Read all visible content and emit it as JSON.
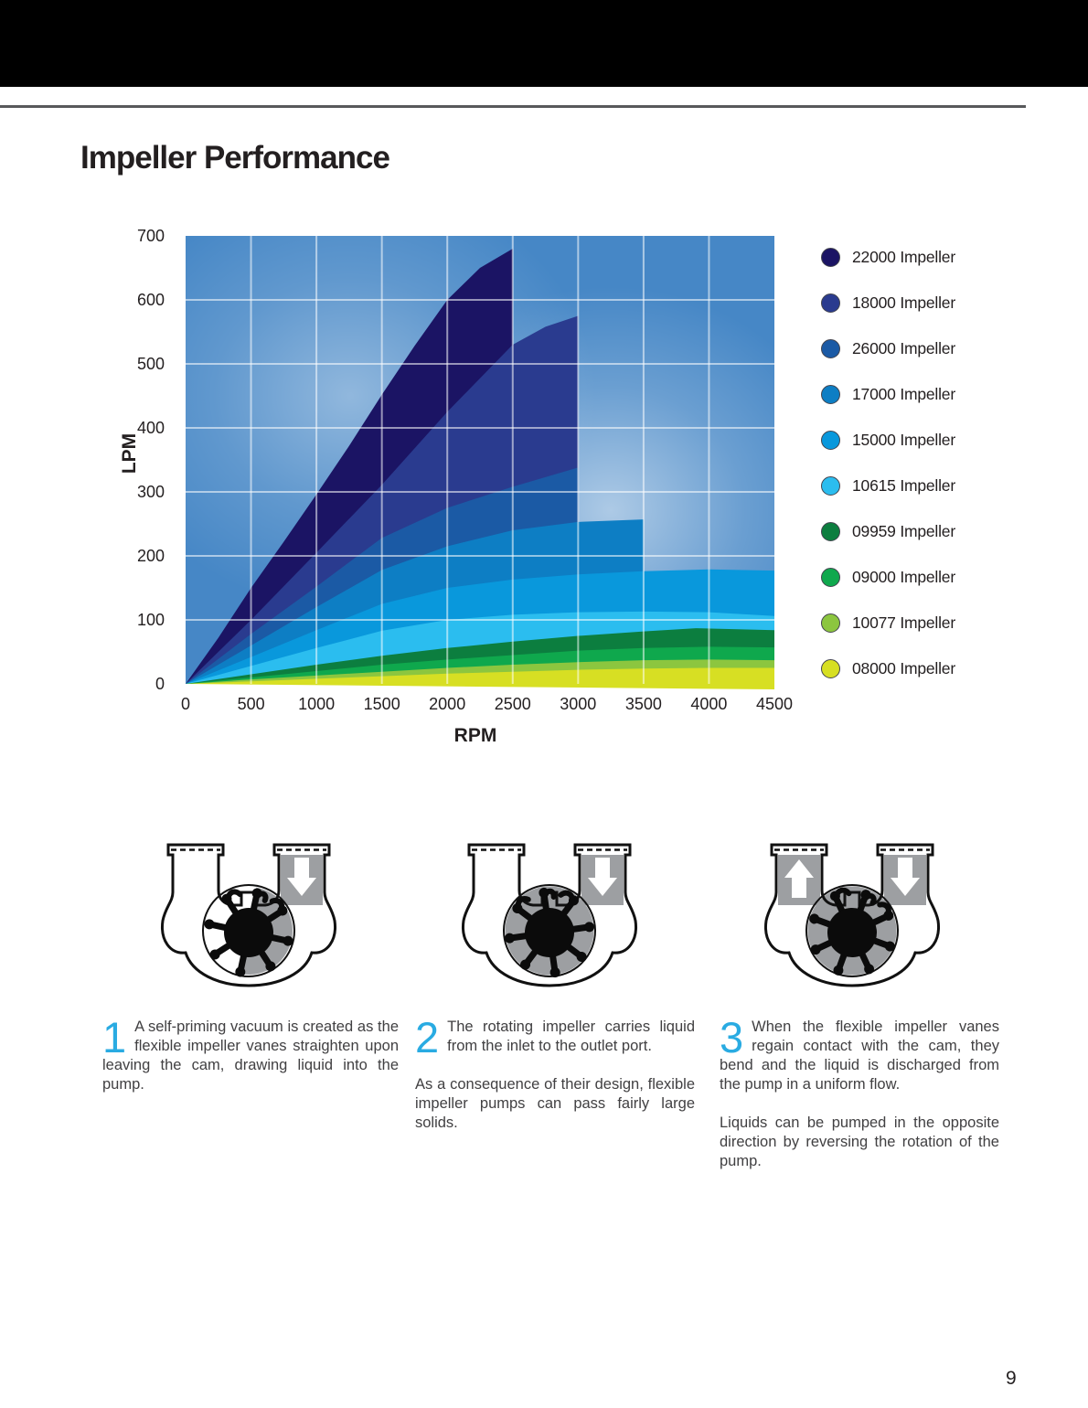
{
  "page": {
    "title": "Impeller Performance",
    "page_number": "9"
  },
  "colors": {
    "accent_cyan": "#29ABE2",
    "top_bar": "#000000",
    "rule_gray": "#58595B",
    "title_text": "#231F20",
    "body_text": "#414042",
    "diagram_gray": "#9D9FA2",
    "chart_bg_blue": "#4687C6",
    "grid_white": "#FFFFFF"
  },
  "chart_data": {
    "type": "area",
    "title": "",
    "xlabel": "RPM",
    "ylabel": "LPM",
    "xlim": [
      0,
      4500
    ],
    "ylim": [
      0,
      700
    ],
    "x_ticks": [
      0,
      500,
      1000,
      1500,
      2000,
      2500,
      3000,
      3500,
      4000,
      4500
    ],
    "y_ticks": [
      0,
      100,
      200,
      300,
      400,
      500,
      600,
      700
    ],
    "grid": true,
    "legend_position": "right",
    "series": [
      {
        "id": "22000",
        "legend_label": "22000 Impeller",
        "color": "#1B1464",
        "max_rpm": 2500,
        "points": [
          [
            0,
            0
          ],
          [
            250,
            72
          ],
          [
            500,
            150
          ],
          [
            750,
            222
          ],
          [
            1000,
            296
          ],
          [
            1250,
            372
          ],
          [
            1500,
            452
          ],
          [
            1750,
            528
          ],
          [
            2000,
            600
          ],
          [
            2250,
            650
          ],
          [
            2500,
            680
          ]
        ]
      },
      {
        "id": "18000",
        "legend_label": "18000 Impeller",
        "color": "#2A3B8F",
        "max_rpm": 3000,
        "points": [
          [
            0,
            0
          ],
          [
            500,
            100
          ],
          [
            1000,
            205
          ],
          [
            1500,
            311
          ],
          [
            2000,
            425
          ],
          [
            2500,
            530
          ],
          [
            2750,
            558
          ],
          [
            3000,
            575
          ]
        ]
      },
      {
        "id": "26000",
        "legend_label": "26000 Impeller",
        "color": "#1B5AA5",
        "max_rpm": 3000,
        "points": [
          [
            0,
            0
          ],
          [
            500,
            78
          ],
          [
            1000,
            152
          ],
          [
            1500,
            228
          ],
          [
            2000,
            275
          ],
          [
            2500,
            308
          ],
          [
            3000,
            338
          ]
        ]
      },
      {
        "id": "17000",
        "legend_label": "17000 Impeller",
        "color": "#0D7EC4",
        "max_rpm": 3500,
        "points": [
          [
            0,
            0
          ],
          [
            500,
            60
          ],
          [
            1000,
            120
          ],
          [
            1500,
            178
          ],
          [
            2000,
            215
          ],
          [
            2500,
            240
          ],
          [
            3000,
            253
          ],
          [
            3500,
            257
          ]
        ]
      },
      {
        "id": "15000",
        "legend_label": "15000 Impeller",
        "color": "#0998DC",
        "max_rpm": 4500,
        "points": [
          [
            0,
            0
          ],
          [
            500,
            42
          ],
          [
            1000,
            84
          ],
          [
            1500,
            125
          ],
          [
            2000,
            150
          ],
          [
            2500,
            163
          ],
          [
            3000,
            171
          ],
          [
            3500,
            176
          ],
          [
            4000,
            179
          ],
          [
            4500,
            177
          ]
        ]
      },
      {
        "id": "10615",
        "legend_label": "10615 Impeller",
        "color": "#2BBDEF",
        "max_rpm": 4500,
        "points": [
          [
            0,
            0
          ],
          [
            500,
            28
          ],
          [
            1000,
            56
          ],
          [
            1500,
            83
          ],
          [
            2000,
            100
          ],
          [
            2500,
            108
          ],
          [
            3000,
            112
          ],
          [
            3500,
            113
          ],
          [
            4000,
            112
          ],
          [
            4500,
            106
          ]
        ]
      },
      {
        "id": "09959",
        "legend_label": "09959 Impeller",
        "color": "#0C7E3F",
        "max_rpm": 4500,
        "points": [
          [
            0,
            0
          ],
          [
            500,
            15
          ],
          [
            1000,
            30
          ],
          [
            1500,
            44
          ],
          [
            2000,
            56
          ],
          [
            2500,
            66
          ],
          [
            3000,
            75
          ],
          [
            3500,
            82
          ],
          [
            3900,
            87
          ],
          [
            4500,
            84
          ]
        ]
      },
      {
        "id": "09000",
        "legend_label": "09000 Impeller",
        "color": "#0FA84D",
        "max_rpm": 4500,
        "points": [
          [
            0,
            0
          ],
          [
            500,
            10
          ],
          [
            1000,
            20
          ],
          [
            1500,
            30
          ],
          [
            2000,
            38
          ],
          [
            2500,
            45
          ],
          [
            3000,
            52
          ],
          [
            3500,
            56
          ],
          [
            4000,
            58
          ],
          [
            4500,
            57
          ]
        ]
      },
      {
        "id": "10077",
        "legend_label": "10077 Impeller",
        "color": "#8CC63F",
        "max_rpm": 4500,
        "points": [
          [
            0,
            0
          ],
          [
            500,
            7
          ],
          [
            1000,
            13
          ],
          [
            1500,
            19
          ],
          [
            2000,
            25
          ],
          [
            2500,
            30
          ],
          [
            3000,
            34
          ],
          [
            3500,
            37
          ],
          [
            4000,
            38
          ],
          [
            4500,
            37
          ]
        ]
      },
      {
        "id": "08000",
        "legend_label": "08000 Impeller",
        "color": "#D7DF23",
        "max_rpm": 4500,
        "points": [
          [
            0,
            0
          ],
          [
            500,
            4
          ],
          [
            1000,
            8
          ],
          [
            1500,
            12
          ],
          [
            2000,
            16
          ],
          [
            2500,
            19
          ],
          [
            3000,
            22
          ],
          [
            3500,
            24
          ],
          [
            4000,
            25
          ],
          [
            4500,
            25
          ]
        ]
      }
    ]
  },
  "sections": [
    {
      "number": "1",
      "paragraphs": [
        "A self-priming vacuum is created as the flexible impeller vanes straighten upon leaving the cam, drawing liquid into the pump."
      ]
    },
    {
      "number": "2",
      "paragraphs": [
        "The rotating impeller carries liquid from the inlet to the outlet port.",
        "As a consequence of their design, flexible impeller pumps can pass fairly large solids."
      ]
    },
    {
      "number": "3",
      "paragraphs": [
        "When the flexible impeller vanes regain contact with the cam, they bend and the liquid is discharged from the pump in a uniform flow.",
        "Liquids can be pumped in the opposite direction by reversing the rotation of the pump."
      ]
    }
  ]
}
